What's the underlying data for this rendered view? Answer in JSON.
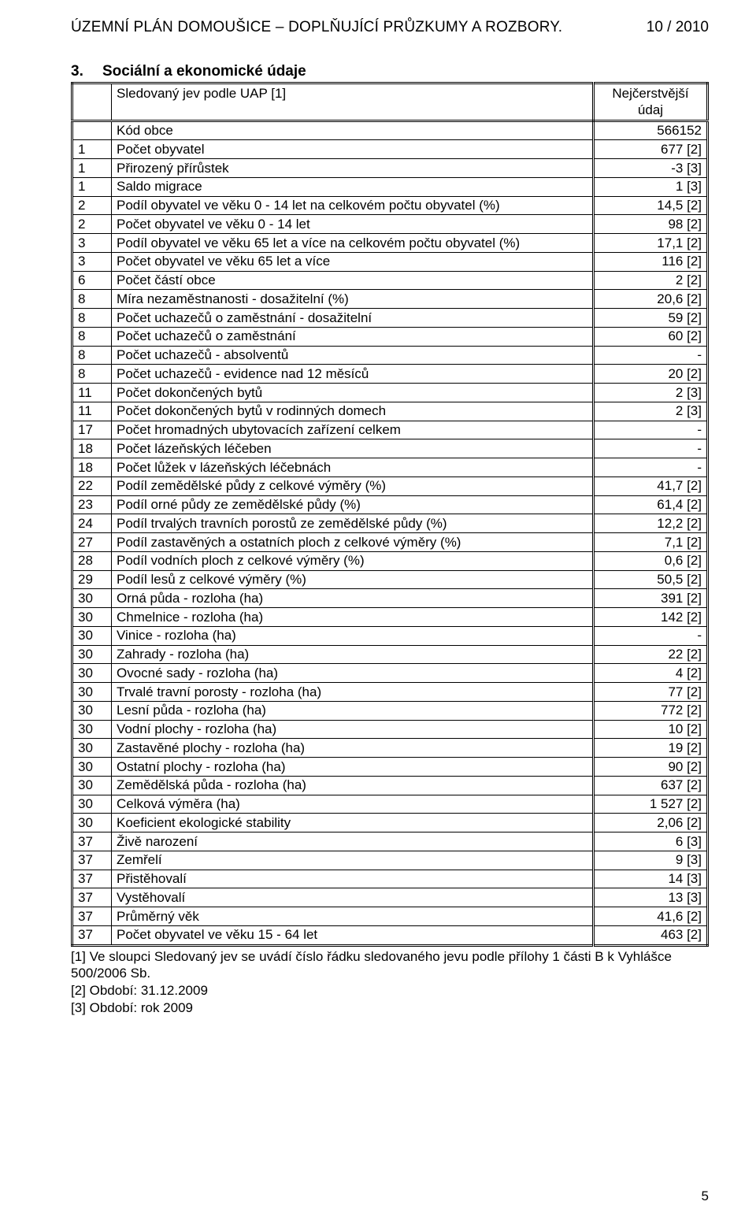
{
  "header": {
    "title": "ÚZEMNÍ PLÁN DOMOUŠICE – DOPLŇUJÍCÍ PRŮZKUMY A ROZBORY.",
    "right": "10 / 2010"
  },
  "section": {
    "number": "3.",
    "title": "Sociální a ekonomické údaje"
  },
  "table": {
    "header": {
      "col0": "",
      "col1": "Sledovaný jev podle UAP [1]",
      "col2_line1": "Nejčerstvější",
      "col2_line2": "údaj"
    },
    "rows": [
      {
        "c0": "",
        "c1": "Kód obce",
        "c2": "566152"
      },
      {
        "c0": "1",
        "c1": "Počet obyvatel",
        "c2": "677 [2]"
      },
      {
        "c0": "1",
        "c1": "Přirozený přírůstek",
        "c2": "-3 [3]"
      },
      {
        "c0": "1",
        "c1": "Saldo migrace",
        "c2": "1 [3]"
      },
      {
        "c0": "2",
        "c1": "Podíl obyvatel ve věku 0 - 14 let na celkovém počtu obyvatel (%)",
        "c2": "14,5 [2]"
      },
      {
        "c0": "2",
        "c1": "Počet obyvatel ve věku 0 - 14 let",
        "c2": "98 [2]"
      },
      {
        "c0": "3",
        "c1": "Podíl obyvatel ve věku 65 let a více na celkovém počtu obyvatel (%)",
        "c2": "17,1 [2]"
      },
      {
        "c0": "3",
        "c1": "Počet obyvatel ve věku 65 let a více",
        "c2": "116 [2]"
      },
      {
        "c0": "6",
        "c1": "Počet částí obce",
        "c2": "2 [2]"
      },
      {
        "c0": "8",
        "c1": "Míra nezaměstnanosti - dosažitelní (%)",
        "c2": "20,6 [2]"
      },
      {
        "c0": "8",
        "c1": "Počet uchazečů o zaměstnání - dosažitelní",
        "c2": "59 [2]"
      },
      {
        "c0": "8",
        "c1": "Počet uchazečů o zaměstnání",
        "c2": "60 [2]"
      },
      {
        "c0": "8",
        "c1": "Počet uchazečů - absolventů",
        "c2": "-"
      },
      {
        "c0": "8",
        "c1": "Počet uchazečů - evidence nad 12 měsíců",
        "c2": "20 [2]"
      },
      {
        "c0": "11",
        "c1": "Počet dokončených bytů",
        "c2": "2 [3]"
      },
      {
        "c0": "11",
        "c1": "Počet dokončených bytů v rodinných domech",
        "c2": "2 [3]"
      },
      {
        "c0": "17",
        "c1": "Počet hromadných ubytovacích zařízení celkem",
        "c2": "-"
      },
      {
        "c0": "18",
        "c1": "Počet lázeňských léčeben",
        "c2": "-"
      },
      {
        "c0": "18",
        "c1": "Počet lůžek v lázeňských léčebnách",
        "c2": "-"
      },
      {
        "c0": "22",
        "c1": "Podíl zemědělské půdy z celkové výměry (%)",
        "c2": "41,7 [2]"
      },
      {
        "c0": "23",
        "c1": "Podíl orné půdy ze zemědělské půdy (%)",
        "c2": "61,4 [2]"
      },
      {
        "c0": "24",
        "c1": "Podíl trvalých travních porostů ze zemědělské půdy (%)",
        "c2": "12,2 [2]"
      },
      {
        "c0": "27",
        "c1": "Podíl zastavěných a ostatních ploch z celkové výměry (%)",
        "c2": "7,1 [2]"
      },
      {
        "c0": "28",
        "c1": "Podíl vodních ploch z celkové výměry (%)",
        "c2": "0,6 [2]"
      },
      {
        "c0": "29",
        "c1": "Podíl lesů z celkové výměry (%)",
        "c2": "50,5 [2]"
      },
      {
        "c0": "30",
        "c1": "Orná půda - rozloha (ha)",
        "c2": "391 [2]"
      },
      {
        "c0": "30",
        "c1": "Chmelnice - rozloha (ha)",
        "c2": "142 [2]"
      },
      {
        "c0": "30",
        "c1": "Vinice - rozloha (ha)",
        "c2": "-"
      },
      {
        "c0": "30",
        "c1": "Zahrady - rozloha (ha)",
        "c2": "22 [2]"
      },
      {
        "c0": "30",
        "c1": "Ovocné sady - rozloha (ha)",
        "c2": "4 [2]"
      },
      {
        "c0": "30",
        "c1": "Trvalé travní porosty - rozloha (ha)",
        "c2": "77 [2]"
      },
      {
        "c0": "30",
        "c1": "Lesní půda - rozloha (ha)",
        "c2": "772 [2]"
      },
      {
        "c0": "30",
        "c1": "Vodní plochy - rozloha (ha)",
        "c2": "10 [2]"
      },
      {
        "c0": "30",
        "c1": "Zastavěné plochy - rozloha (ha)",
        "c2": "19 [2]"
      },
      {
        "c0": "30",
        "c1": "Ostatní plochy - rozloha (ha)",
        "c2": "90 [2]"
      },
      {
        "c0": "30",
        "c1": "Zemědělská půda - rozloha (ha)",
        "c2": "637 [2]"
      },
      {
        "c0": "30",
        "c1": "Celková výměra (ha)",
        "c2": "1 527 [2]"
      },
      {
        "c0": "30",
        "c1": "Koeficient ekologické stability",
        "c2": "2,06 [2]"
      },
      {
        "c0": "37",
        "c1": "Živě narození",
        "c2": "6 [3]"
      },
      {
        "c0": "37",
        "c1": "Zemřelí",
        "c2": "9 [3]"
      },
      {
        "c0": "37",
        "c1": "Přistěhovalí",
        "c2": "14 [3]"
      },
      {
        "c0": "37",
        "c1": "Vystěhovalí",
        "c2": "13 [3]"
      },
      {
        "c0": "37",
        "c1": "Průměrný věk",
        "c2": "41,6 [2]"
      },
      {
        "c0": "37",
        "c1": "Počet obyvatel ve věku 15 - 64 let",
        "c2": "463 [2]"
      }
    ]
  },
  "footnotes": {
    "f1": "[1] Ve sloupci Sledovaný jev se uvádí číslo řádku sledovaného jevu podle přílohy 1 části B k Vyhlášce 500/2006 Sb.",
    "f2": "[2] Období: 31.12.2009",
    "f3": "[3] Období: rok 2009"
  },
  "page_number": "5"
}
